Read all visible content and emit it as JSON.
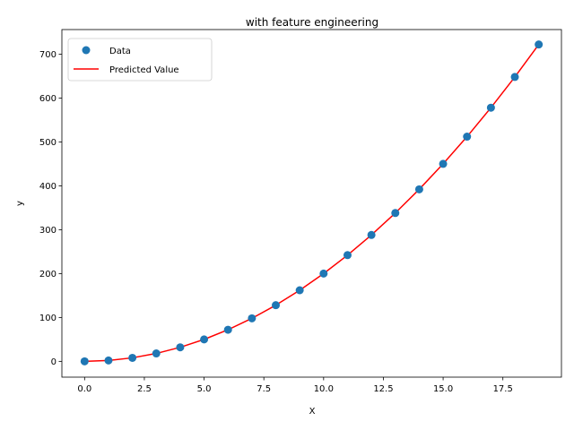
{
  "chart_data": {
    "type": "scatter",
    "title": "with feature engineering",
    "xlabel": "X",
    "ylabel": "y",
    "xlim": [
      -0.95,
      19.95
    ],
    "ylim": [
      -36,
      756
    ],
    "xticks": [
      0.0,
      2.5,
      5.0,
      7.5,
      10.0,
      12.5,
      15.0,
      17.5
    ],
    "xtick_labels": [
      "0.0",
      "2.5",
      "5.0",
      "7.5",
      "10.0",
      "12.5",
      "15.0",
      "17.5"
    ],
    "yticks": [
      0,
      100,
      200,
      300,
      400,
      500,
      600,
      700
    ],
    "ytick_labels": [
      "0",
      "100",
      "200",
      "300",
      "400",
      "500",
      "600",
      "700"
    ],
    "grid": false,
    "legend_position": "top-left",
    "series": [
      {
        "name": "Data",
        "kind": "scatter",
        "color": "#1f77b4",
        "x": [
          0,
          1,
          2,
          3,
          4,
          5,
          6,
          7,
          8,
          9,
          10,
          11,
          12,
          13,
          14,
          15,
          16,
          17,
          18,
          19
        ],
        "y": [
          0,
          2,
          8,
          18,
          32,
          50,
          72,
          98,
          128,
          162,
          200,
          242,
          288,
          338,
          392,
          450,
          512,
          578,
          648,
          722
        ]
      },
      {
        "name": "Predicted Value",
        "kind": "line",
        "color": "#ff0000",
        "x": [
          0,
          1,
          2,
          3,
          4,
          5,
          6,
          7,
          8,
          9,
          10,
          11,
          12,
          13,
          14,
          15,
          16,
          17,
          18,
          19
        ],
        "y": [
          0,
          2,
          8,
          18,
          32,
          50,
          72,
          98,
          128,
          162,
          200,
          242,
          288,
          338,
          392,
          450,
          512,
          578,
          648,
          722
        ]
      }
    ]
  }
}
